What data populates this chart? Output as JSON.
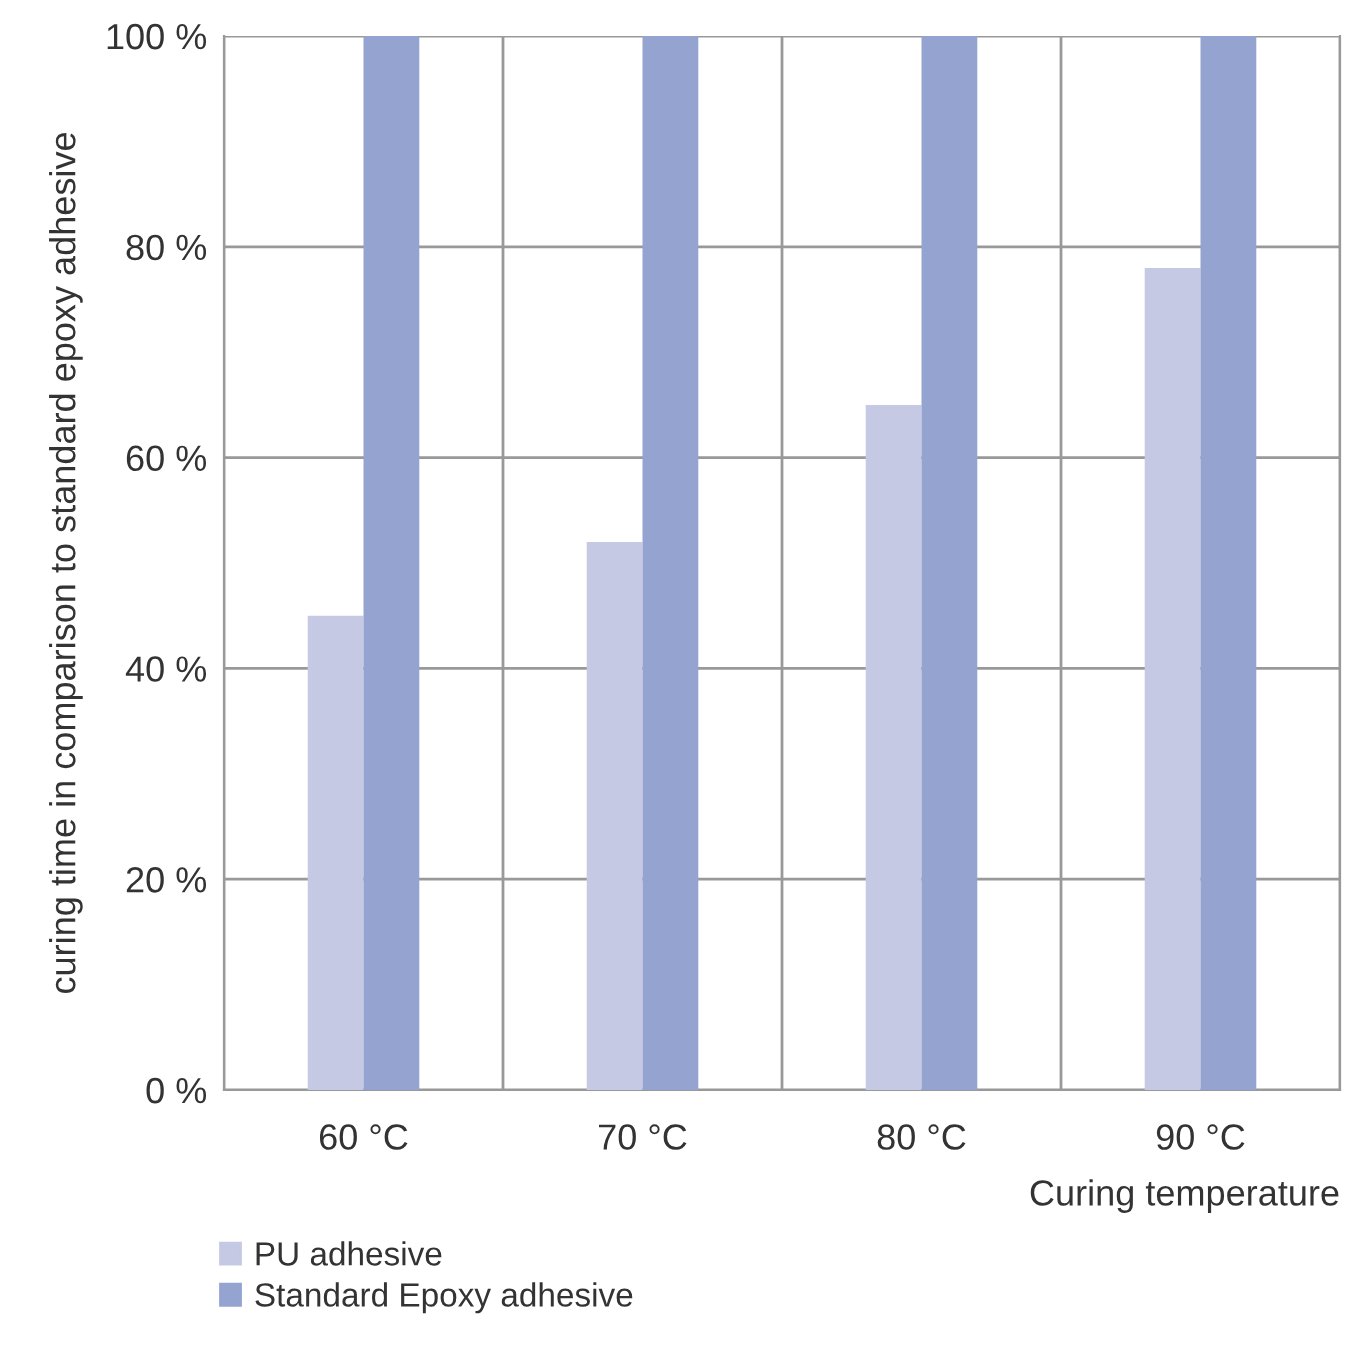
{
  "chart_data": {
    "type": "bar",
    "categories": [
      "60 °C",
      "70 °C",
      "80 °C",
      "90 °C"
    ],
    "series": [
      {
        "name": "PU adhesive",
        "color": "#c5c9e4",
        "values": [
          45,
          52,
          65,
          78
        ]
      },
      {
        "name": "Standard Epoxy adhesive",
        "color": "#95a3d0",
        "values": [
          100,
          100,
          100,
          100
        ]
      }
    ],
    "xlabel": "Curing temperature",
    "ylabel": "curing time in comparison to standard epoxy adhesive",
    "ylim": [
      0,
      100
    ],
    "yticks": [
      {
        "value": 0,
        "label": "0 %"
      },
      {
        "value": 20,
        "label": "20 %"
      },
      {
        "value": 40,
        "label": "40 %"
      },
      {
        "value": 60,
        "label": "60 %"
      },
      {
        "value": 80,
        "label": "80 %"
      },
      {
        "value": 100,
        "label": "100 %"
      }
    ],
    "grid": true,
    "legend": "bottom left"
  }
}
